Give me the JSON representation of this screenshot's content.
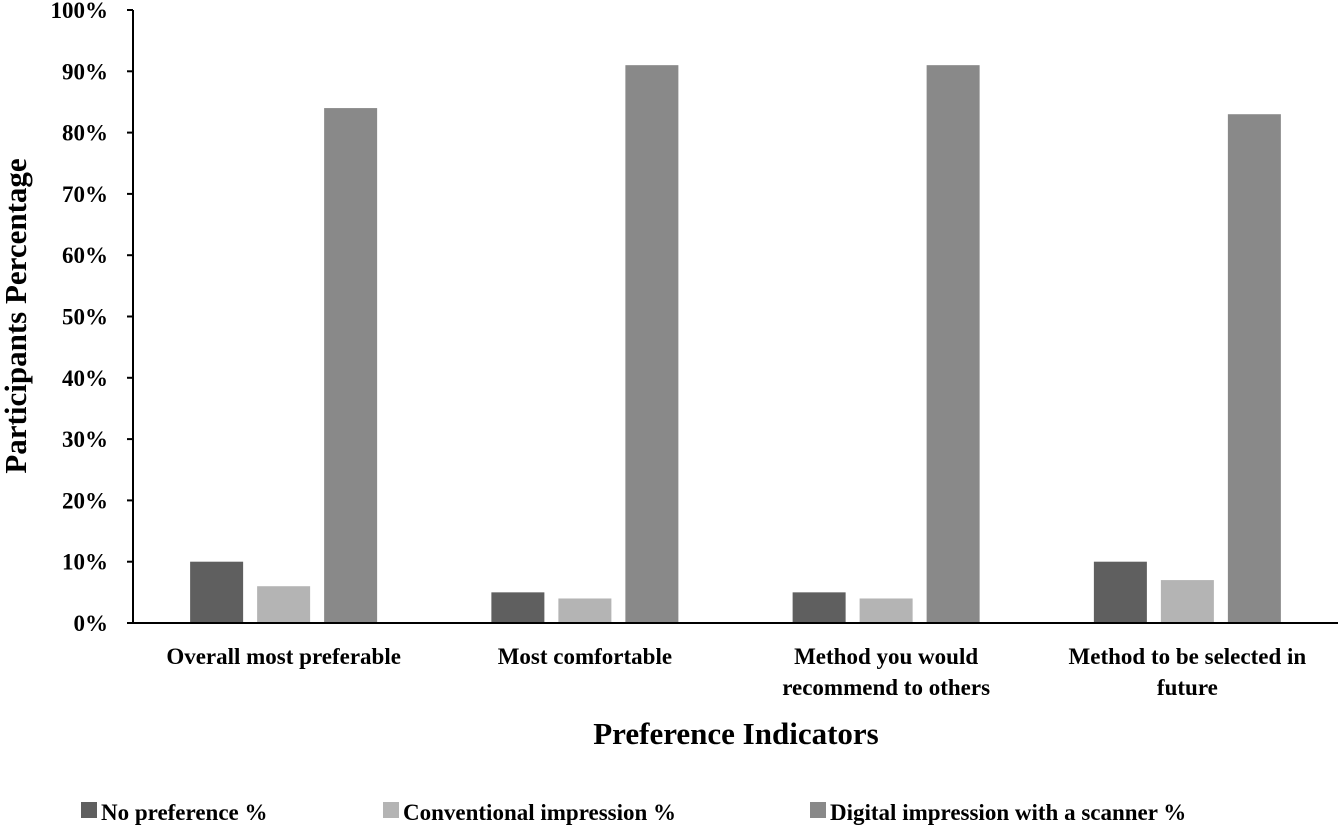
{
  "chart_data": {
    "type": "bar",
    "title": "",
    "xlabel": "Preference Indicators",
    "ylabel": "Participants Percentage",
    "ylim": [
      0,
      100
    ],
    "yticks": [
      "0%",
      "10%",
      "20%",
      "30%",
      "40%",
      "50%",
      "60%",
      "70%",
      "80%",
      "90%",
      "100%"
    ],
    "categories": [
      [
        "Overall most preferable"
      ],
      [
        "Most comfortable"
      ],
      [
        "Method you would",
        "recommend to others"
      ],
      [
        "Method to be selected in",
        "future"
      ]
    ],
    "series": [
      {
        "name": "No preference %",
        "color": "#5f5f5f",
        "values": [
          10,
          5,
          5,
          10
        ]
      },
      {
        "name": "Conventional impression %",
        "color": "#b4b4b4",
        "values": [
          6,
          4,
          4,
          7
        ]
      },
      {
        "name": "Digital impression with a scanner %",
        "color": "#898989",
        "values": [
          84,
          91,
          91,
          83
        ]
      }
    ],
    "grid": false,
    "legend": "bottom"
  }
}
